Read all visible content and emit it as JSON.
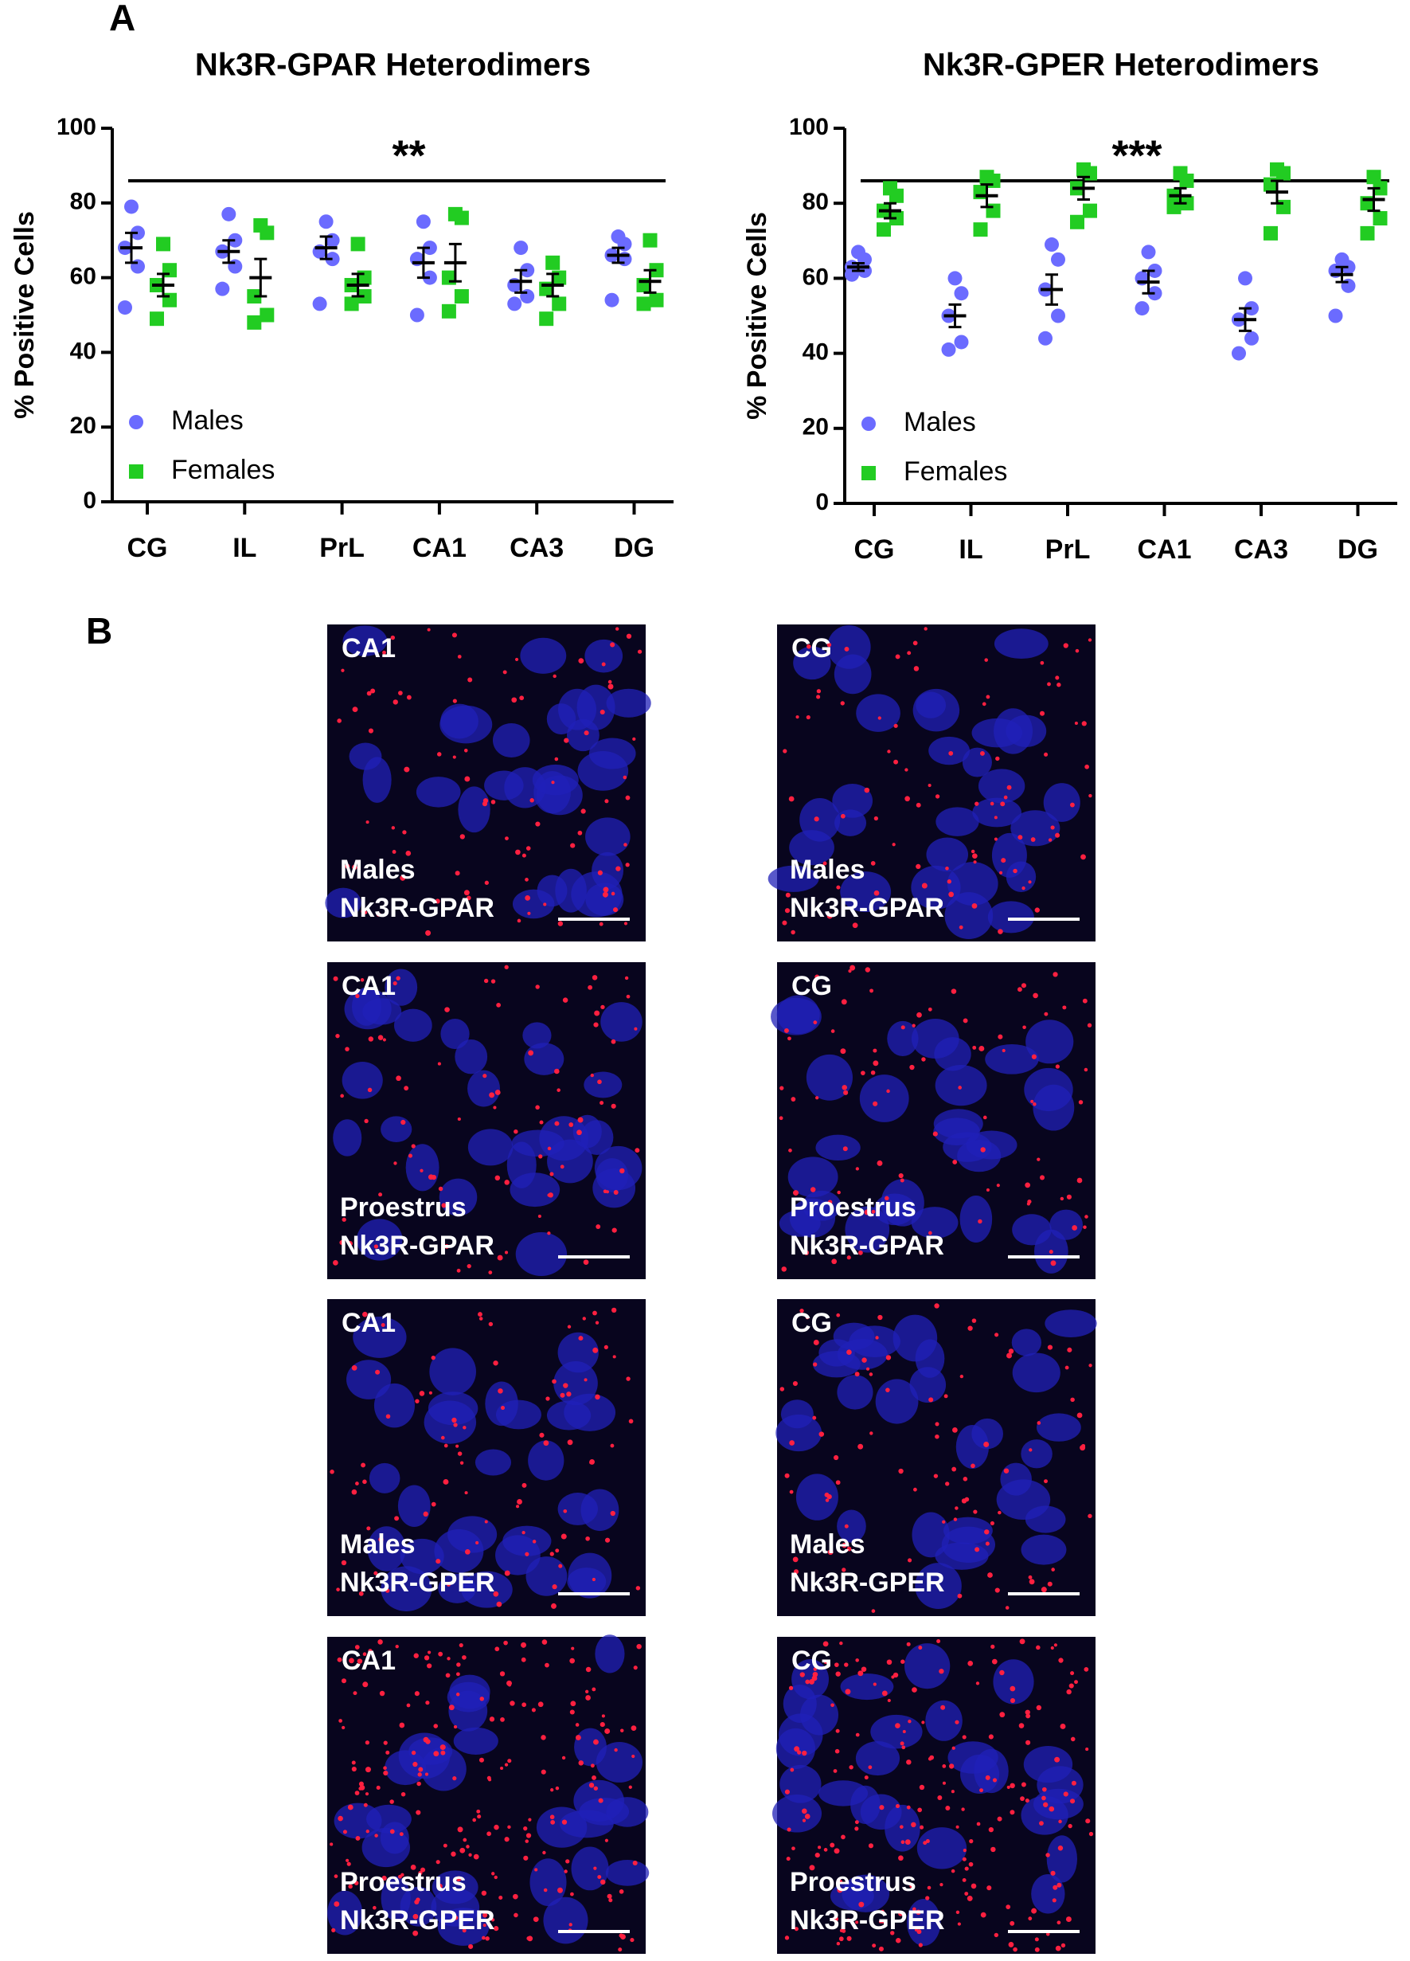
{
  "panels": [
    "A",
    "B"
  ],
  "chart_data": [
    {
      "type": "dot",
      "title": "Nk3R-GPAR Heterodimers",
      "y_label": "% Positive Cells",
      "annotation": "**",
      "categories": [
        "CG",
        "IL",
        "PrL",
        "CA1",
        "CA3",
        "DG"
      ],
      "ylim": [
        0,
        100
      ],
      "yticks": [
        0,
        20,
        40,
        60,
        80,
        100
      ],
      "legend": "lower-left",
      "series": [
        {
          "name": "Males",
          "color": "#6b6bff",
          "marker": "circle",
          "values": [
            [
              79,
              72,
              68,
              63,
              52
            ],
            [
              77,
              70,
              67,
              63,
              57
            ],
            [
              75,
              70,
              67,
              65,
              53
            ],
            [
              75,
              68,
              65,
              60,
              50
            ],
            [
              68,
              62,
              58,
              55,
              53
            ],
            [
              71,
              69,
              66,
              65,
              54
            ]
          ],
          "mean": [
            68,
            67,
            68,
            64,
            59,
            66
          ],
          "sem": [
            4,
            3,
            3,
            4,
            3,
            2
          ]
        },
        {
          "name": "Females",
          "color": "#22cc22",
          "marker": "square",
          "values": [
            [
              69,
              62,
              58,
              54,
              49
            ],
            [
              74,
              72,
              55,
              50,
              48
            ],
            [
              69,
              60,
              58,
              55,
              53
            ],
            [
              77,
              76,
              60,
              55,
              51
            ],
            [
              64,
              60,
              57,
              53,
              49
            ],
            [
              70,
              62,
              58,
              54,
              53
            ]
          ],
          "mean": [
            58,
            60,
            58,
            64,
            58,
            59
          ],
          "sem": [
            3,
            5,
            3,
            5,
            3,
            3
          ]
        }
      ]
    },
    {
      "type": "dot",
      "title": "Nk3R-GPER Heterodimers",
      "y_label": "% Positive Cells",
      "annotation": "***",
      "categories": [
        "CG",
        "IL",
        "PrL",
        "CA1",
        "CA3",
        "DG"
      ],
      "ylim": [
        0,
        100
      ],
      "yticks": [
        0,
        20,
        40,
        60,
        80,
        100
      ],
      "legend": "lower-left",
      "series": [
        {
          "name": "Males",
          "color": "#6b6bff",
          "marker": "circle",
          "values": [
            [
              67,
              65,
              63,
              62,
              61
            ],
            [
              60,
              56,
              50,
              43,
              41
            ],
            [
              69,
              65,
              57,
              50,
              44
            ],
            [
              67,
              62,
              60,
              56,
              52
            ],
            [
              60,
              52,
              49,
              44,
              40
            ],
            [
              65,
              63,
              62,
              58,
              50
            ]
          ],
          "mean": [
            63,
            50,
            57,
            59,
            49,
            61
          ],
          "sem": [
            1,
            3,
            4,
            3,
            3,
            2
          ]
        },
        {
          "name": "Females",
          "color": "#22cc22",
          "marker": "square",
          "values": [
            [
              84,
              82,
              78,
              76,
              73
            ],
            [
              87,
              86,
              83,
              78,
              73
            ],
            [
              89,
              88,
              84,
              78,
              75
            ],
            [
              88,
              86,
              82,
              80,
              79
            ],
            [
              89,
              88,
              85,
              79,
              72
            ],
            [
              87,
              84,
              80,
              76,
              72
            ]
          ],
          "mean": [
            78,
            82,
            84,
            82,
            83,
            81
          ],
          "sem": [
            2,
            3,
            3,
            2,
            3,
            3
          ]
        }
      ]
    }
  ],
  "images": [
    {
      "region": "CA1",
      "group": "Males",
      "receptor": "Nk3R-GPAR"
    },
    {
      "region": "CG",
      "group": "Males",
      "receptor": "Nk3R-GPAR"
    },
    {
      "region": "CA1",
      "group": "Proestrus",
      "receptor": "Nk3R-GPAR"
    },
    {
      "region": "CG",
      "group": "Proestrus",
      "receptor": "Nk3R-GPAR"
    },
    {
      "region": "CA1",
      "group": "Males",
      "receptor": "Nk3R-GPER"
    },
    {
      "region": "CG",
      "group": "Males",
      "receptor": "Nk3R-GPER"
    },
    {
      "region": "CA1",
      "group": "Proestrus",
      "receptor": "Nk3R-GPER"
    },
    {
      "region": "CG",
      "group": "Proestrus",
      "receptor": "Nk3R-GPER"
    }
  ]
}
